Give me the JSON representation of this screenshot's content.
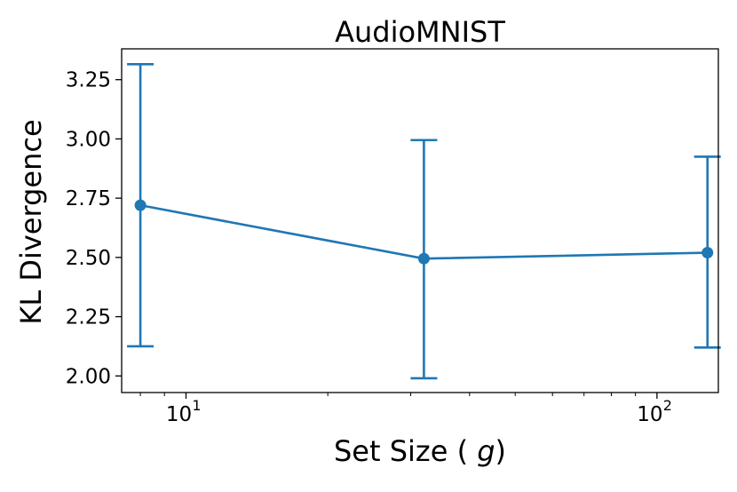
{
  "chart_data": {
    "type": "line",
    "title": "AudioMNIST",
    "xlabel": "Set Size (g)",
    "ylabel": "KL Divergence",
    "xscale": "log",
    "xlim": [
      7.3,
      135
    ],
    "ylim": [
      1.93,
      3.38
    ],
    "x": [
      8,
      32,
      128
    ],
    "series": [
      {
        "values": [
          2.72,
          2.495,
          2.52
        ],
        "err_low": [
          2.125,
          1.99,
          2.12
        ],
        "err_high": [
          3.315,
          2.995,
          2.925
        ],
        "color": "#1f77b4"
      }
    ],
    "yticks": [
      "2.00",
      "2.25",
      "2.50",
      "2.75",
      "3.00",
      "3.25"
    ],
    "xticks": [
      {
        "base": "10",
        "exp": "1"
      },
      {
        "base": "10",
        "exp": "2"
      }
    ],
    "grid": false
  }
}
